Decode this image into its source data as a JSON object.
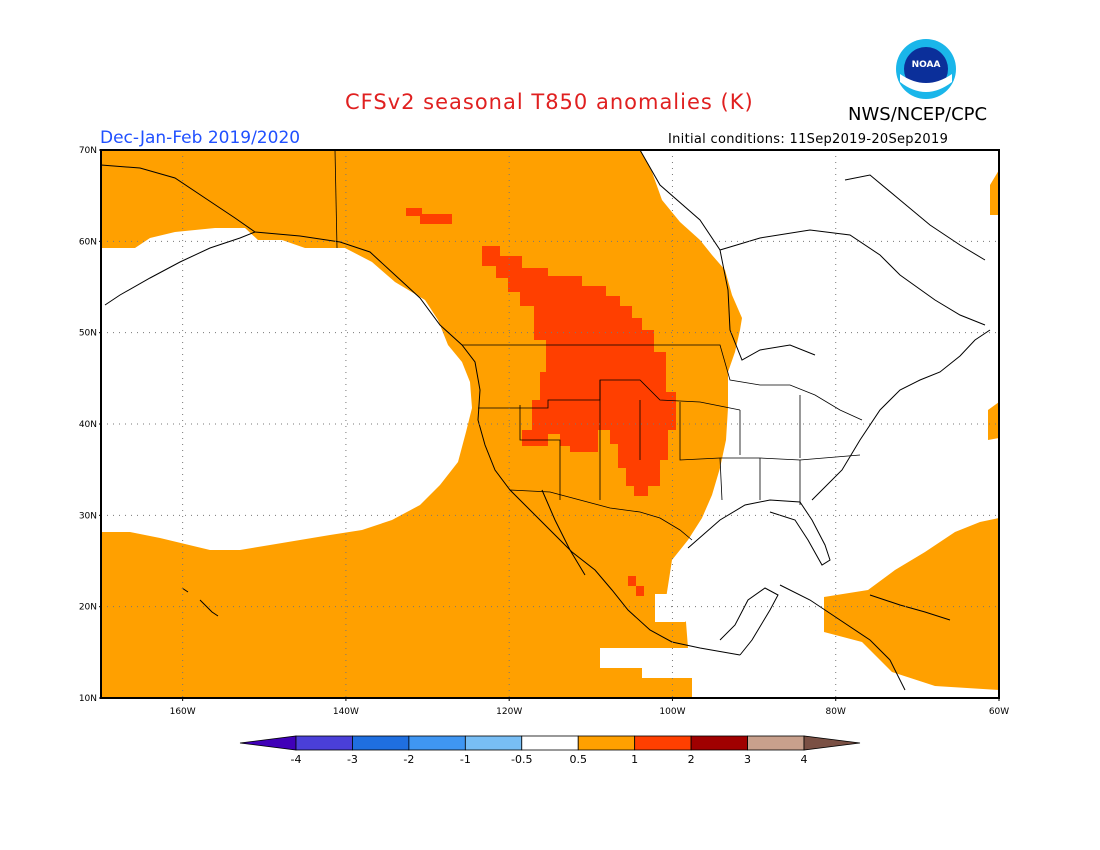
{
  "header": {
    "title": "CFSv2 seasonal T850 anomalies (K)",
    "agency": "NWS/NCEP/CPC",
    "season": "Dec-Jan-Feb 2019/2020",
    "initial_conditions": "Initial conditions: 11Sep2019-20Sep2019",
    "logo_text": "NOAA"
  },
  "map": {
    "projection": "cylindrical equidistant",
    "lon_range": [
      -170,
      -60
    ],
    "lat_range": [
      10,
      70
    ],
    "gridlines": "dotted",
    "lat_labels": [
      "70N",
      "60N",
      "50N",
      "40N",
      "30N",
      "20N",
      "10N"
    ],
    "lon_labels": [
      "160W",
      "140W",
      "120W",
      "100W",
      "80W",
      "60W"
    ],
    "shading_colors": {
      "background": "#ffffff",
      "anom_0_5_to_1": "#ffa000",
      "anom_1_to_2": "#ff3f00"
    }
  },
  "colorbar": {
    "labels": [
      "-4",
      "-3",
      "-2",
      "-1",
      "-0.5",
      "0.5",
      "1",
      "2",
      "3",
      "4"
    ],
    "colors": [
      "#4000b8",
      "#4a3fd8",
      "#1f6fe0",
      "#3f96f2",
      "#78bef5",
      "#ffffff",
      "#ffa000",
      "#ff3f00",
      "#a00000",
      "#c8a08c",
      "#7a5044"
    ]
  }
}
